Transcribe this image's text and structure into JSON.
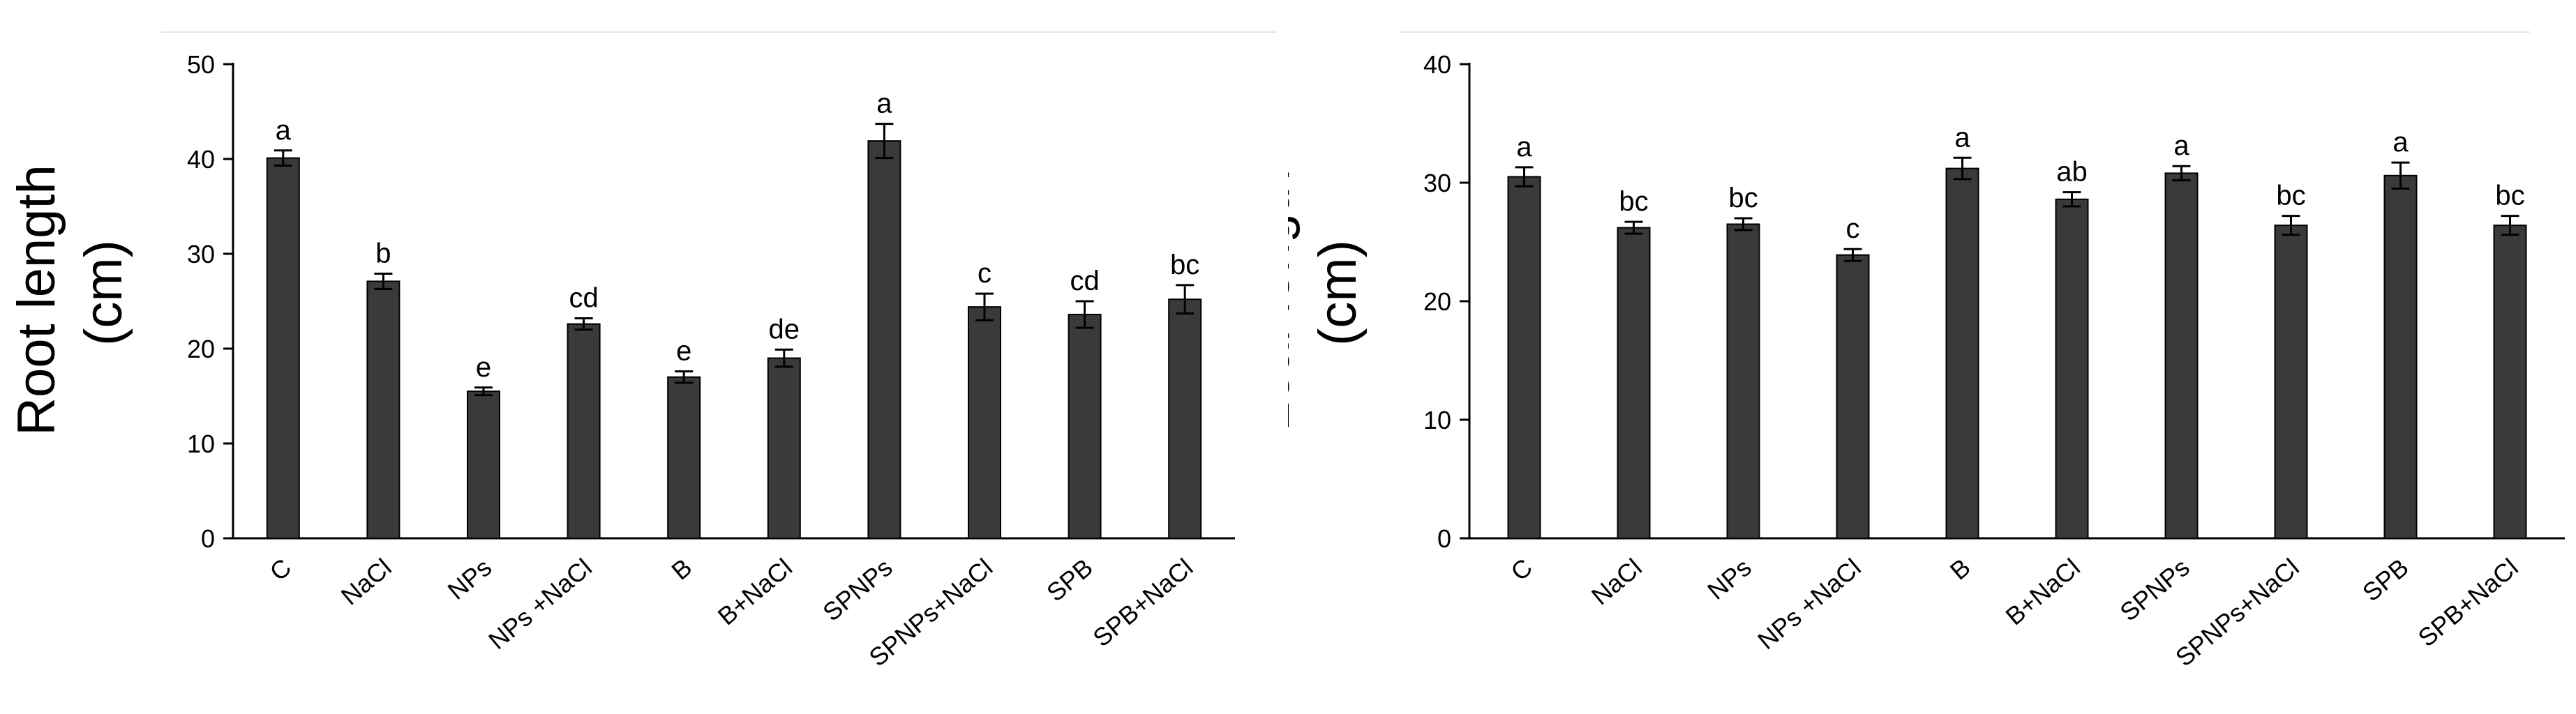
{
  "charts": [
    {
      "type": "bar",
      "ylabel_line1": "Root length",
      "ylabel_line2": "(cm)",
      "ylim": [
        0,
        50
      ],
      "yticks": [
        "0",
        "10",
        "20",
        "30",
        "40",
        "50"
      ],
      "categories": [
        "C",
        "NaCl",
        "NPs",
        "NPs +NaCl",
        "B",
        "B+NaCl",
        "SPNPs",
        "SPNPs+NaCl",
        "SPB",
        "SPB+NaCl"
      ],
      "values": [
        40.1,
        27.1,
        15.5,
        22.6,
        17.0,
        19.0,
        41.9,
        24.4,
        23.6,
        25.2
      ],
      "errors": [
        0.8,
        0.8,
        0.4,
        0.6,
        0.6,
        0.9,
        1.8,
        1.4,
        1.4,
        1.5
      ],
      "letters": [
        "a",
        "b",
        "e",
        "cd",
        "e",
        "de",
        "a",
        "c",
        "cd",
        "bc"
      ],
      "bar_color": "#3a3a3a",
      "grid": false,
      "legend": "none"
    },
    {
      "type": "bar",
      "ylabel_line1": "Leaf length",
      "ylabel_line2": "(cm)",
      "ylim": [
        0,
        40
      ],
      "yticks": [
        "0",
        "10",
        "20",
        "30",
        "40"
      ],
      "categories": [
        "C",
        "NaCl",
        "NPs",
        "NPs +NaCl",
        "B",
        "B+NaCl",
        "SPNPs",
        "SPNPs+NaCl",
        "SPB",
        "SPB+NaCl"
      ],
      "values": [
        30.5,
        26.2,
        26.5,
        23.9,
        31.2,
        28.6,
        30.8,
        26.4,
        30.6,
        26.4
      ],
      "errors": [
        0.8,
        0.5,
        0.5,
        0.5,
        0.9,
        0.6,
        0.6,
        0.8,
        1.1,
        0.8
      ],
      "letters": [
        "a",
        "bc",
        "bc",
        "c",
        "a",
        "ab",
        "a",
        "bc",
        "a",
        "bc"
      ],
      "bar_color": "#3a3a3a",
      "grid": false,
      "legend": "none"
    }
  ]
}
